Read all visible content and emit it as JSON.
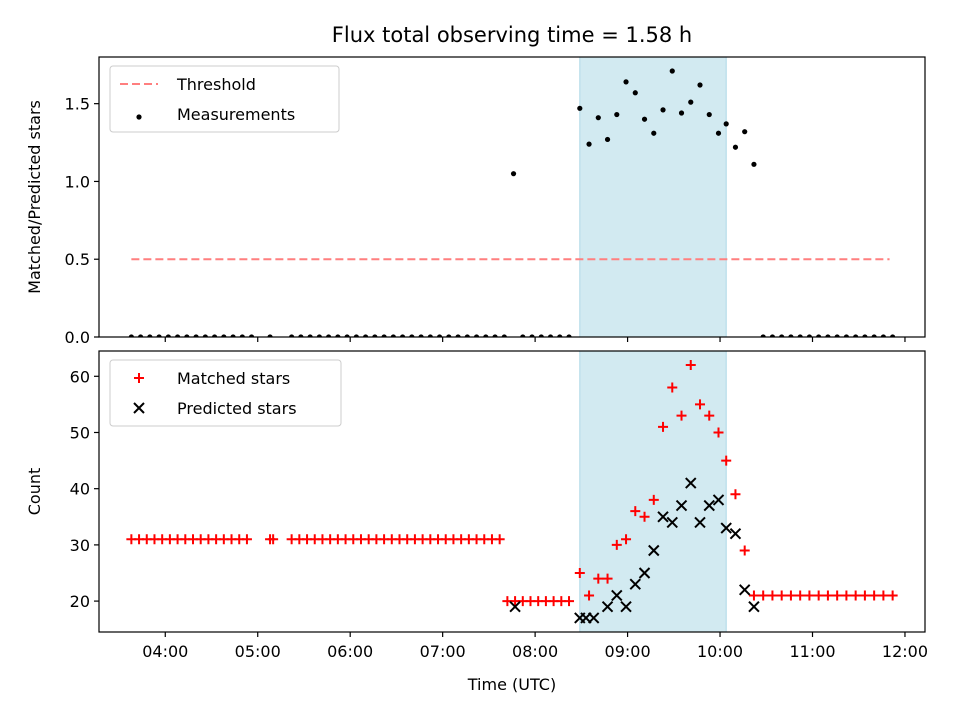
{
  "title": "Flux total observing time = 1.58 h",
  "colors": {
    "threshold": "#ff7f7f",
    "measurement": "#000000",
    "matched": "#ff0000",
    "predicted": "#000000",
    "highlight": "#add8e6"
  },
  "chart_data": [
    {
      "type": "scatter",
      "ylabel": "Matched/Predicted stars",
      "ylim": [
        0,
        1.8
      ],
      "yticks": [
        0.0,
        0.5,
        1.0,
        1.5
      ],
      "ytick_labels": [
        "0.0",
        "0.5",
        "1.0",
        "1.5"
      ],
      "xlim": [
        "03:17",
        "12:13"
      ],
      "xticks": [
        "04:00",
        "05:00",
        "06:00",
        "07:00",
        "08:00",
        "09:00",
        "10:00",
        "11:00",
        "12:00"
      ],
      "highlight_span": [
        "08:29",
        "10:04"
      ],
      "legend": "top-left",
      "series": [
        {
          "name": "Threshold",
          "kind": "dashed-line",
          "x": [
            "03:38",
            "11:50"
          ],
          "y": [
            0.5,
            0.5
          ]
        },
        {
          "name": "Measurements",
          "kind": "dots",
          "x": [
            "03:38",
            "03:44",
            "03:50",
            "03:56",
            "04:02",
            "04:08",
            "04:14",
            "04:20",
            "04:26",
            "04:32",
            "04:38",
            "04:44",
            "04:50",
            "04:56",
            "05:08",
            "05:22",
            "05:28",
            "05:34",
            "05:40",
            "05:46",
            "05:52",
            "05:58",
            "06:04",
            "06:10",
            "06:16",
            "06:22",
            "06:28",
            "06:34",
            "06:40",
            "06:46",
            "06:52",
            "06:58",
            "07:04",
            "07:10",
            "07:16",
            "07:22",
            "07:28",
            "07:34",
            "07:40",
            "07:46",
            "07:52",
            "07:58",
            "08:04",
            "08:10",
            "08:16",
            "08:22",
            "08:29",
            "08:35",
            "08:41",
            "08:47",
            "08:53",
            "08:59",
            "09:05",
            "09:11",
            "09:17",
            "09:23",
            "09:29",
            "09:35",
            "09:41",
            "09:47",
            "09:53",
            "09:59",
            "10:04",
            "10:10",
            "10:16",
            "10:22",
            "10:28",
            "10:34",
            "10:40",
            "10:46",
            "10:52",
            "10:58",
            "11:04",
            "11:10",
            "11:16",
            "11:22",
            "11:28",
            "11:34",
            "11:40",
            "11:46",
            "11:52"
          ],
          "y": [
            0,
            0,
            0,
            0,
            0,
            0,
            0,
            0,
            0,
            0,
            0,
            0,
            0,
            0,
            0,
            0,
            0,
            0,
            0,
            0,
            0,
            0,
            0,
            0,
            0,
            0,
            0,
            0,
            0,
            0,
            0,
            0,
            0,
            0,
            0,
            0,
            0,
            0,
            0,
            1.05,
            0,
            0,
            0,
            0,
            0,
            0,
            1.47,
            1.24,
            1.41,
            1.27,
            1.43,
            1.64,
            1.57,
            1.4,
            1.31,
            1.46,
            1.71,
            1.44,
            1.51,
            1.62,
            1.43,
            1.31,
            1.37,
            1.22,
            1.32,
            1.11,
            0,
            0,
            0,
            0,
            0,
            0,
            0,
            0,
            0,
            0,
            0,
            0,
            0,
            0,
            0
          ]
        }
      ]
    },
    {
      "type": "scatter",
      "ylabel": "Count",
      "xlabel": "Time (UTC)",
      "ylim": [
        14.5,
        64.5
      ],
      "yticks": [
        20,
        30,
        40,
        50,
        60
      ],
      "ytick_labels": [
        "20",
        "30",
        "40",
        "50",
        "60"
      ],
      "xlim": [
        "03:17",
        "12:13"
      ],
      "xticks": [
        "04:00",
        "05:00",
        "06:00",
        "07:00",
        "08:00",
        "09:00",
        "10:00",
        "11:00",
        "12:00"
      ],
      "xtick_labels": [
        "04:00",
        "05:00",
        "06:00",
        "07:00",
        "08:00",
        "09:00",
        "10:00",
        "11:00",
        "12:00"
      ],
      "highlight_span": [
        "08:29",
        "10:04"
      ],
      "legend": "top-left",
      "series": [
        {
          "name": "Matched stars",
          "kind": "plus",
          "x": [
            "03:38",
            "03:43",
            "03:48",
            "03:53",
            "03:58",
            "04:03",
            "04:08",
            "04:13",
            "04:18",
            "04:23",
            "04:28",
            "04:33",
            "04:38",
            "04:43",
            "04:48",
            "04:53",
            "05:08",
            "05:10",
            "05:22",
            "05:27",
            "05:32",
            "05:37",
            "05:42",
            "05:47",
            "05:52",
            "05:57",
            "06:02",
            "06:07",
            "06:12",
            "06:17",
            "06:22",
            "06:27",
            "06:32",
            "06:37",
            "06:42",
            "06:47",
            "06:52",
            "06:57",
            "07:02",
            "07:07",
            "07:12",
            "07:17",
            "07:22",
            "07:27",
            "07:32",
            "07:37",
            "07:42",
            "07:47",
            "07:52",
            "07:57",
            "08:02",
            "08:07",
            "08:12",
            "08:17",
            "08:22",
            "08:29",
            "08:35",
            "08:41",
            "08:47",
            "08:53",
            "08:59",
            "09:05",
            "09:11",
            "09:17",
            "09:23",
            "09:29",
            "09:35",
            "09:41",
            "09:47",
            "09:53",
            "09:59",
            "10:04",
            "10:10",
            "10:16",
            "10:22",
            "10:28",
            "10:34",
            "10:40",
            "10:46",
            "10:52",
            "10:58",
            "11:04",
            "11:10",
            "11:16",
            "11:22",
            "11:28",
            "11:34",
            "11:40",
            "11:46",
            "11:52"
          ],
          "y": [
            31,
            31,
            31,
            31,
            31,
            31,
            31,
            31,
            31,
            31,
            31,
            31,
            31,
            31,
            31,
            31,
            31,
            31,
            31,
            31,
            31,
            31,
            31,
            31,
            31,
            31,
            31,
            31,
            31,
            31,
            31,
            31,
            31,
            31,
            31,
            31,
            31,
            31,
            31,
            31,
            31,
            31,
            31,
            31,
            31,
            31,
            20,
            20,
            20,
            20,
            20,
            20,
            20,
            20,
            20,
            25,
            21,
            24,
            24,
            30,
            31,
            36,
            35,
            38,
            51,
            58,
            53,
            62,
            55,
            53,
            50,
            45,
            39,
            29,
            21,
            21,
            21,
            21,
            21,
            21,
            21,
            21,
            21,
            21,
            21,
            21,
            21,
            21,
            21,
            21
          ]
        },
        {
          "name": "Predicted stars",
          "kind": "cross",
          "x": [
            "07:47",
            "08:29",
            "08:33",
            "08:38",
            "08:47",
            "08:53",
            "08:59",
            "09:05",
            "09:11",
            "09:17",
            "09:23",
            "09:29",
            "09:35",
            "09:41",
            "09:47",
            "09:53",
            "09:59",
            "10:04",
            "10:10"
          ],
          "y": [
            19,
            17,
            17,
            17,
            19,
            21,
            19,
            23,
            25,
            29,
            35,
            34,
            37,
            41,
            34,
            37,
            38,
            33,
            32
          ]
        }
      ]
    }
  ],
  "predicted_extra": {
    "x": [
      "10:16",
      "10:22"
    ],
    "y": [
      22,
      19
    ]
  }
}
